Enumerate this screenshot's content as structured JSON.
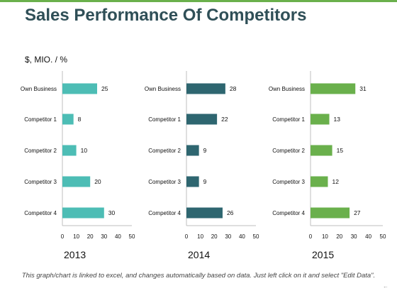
{
  "slide": {
    "title": "Sales Performance Of Competitors",
    "unit_label": "$, MIO. / %",
    "footnote": "This graph/chart is linked to excel, and changes automatically based on data. Just left click on it and select \"Edit Data\"."
  },
  "chart_data": [
    {
      "type": "bar",
      "orientation": "horizontal",
      "title": "2013",
      "categories": [
        "Own Business",
        "Competitor 1",
        "Competitor 2",
        "Competitor 3",
        "Competitor 4"
      ],
      "values": [
        25,
        8,
        10,
        20,
        30
      ],
      "xlim": [
        0,
        50
      ],
      "ticks": [
        0,
        10,
        20,
        30,
        40,
        50
      ],
      "color": "#4dbdb5",
      "data_labels": true,
      "grid": false
    },
    {
      "type": "bar",
      "orientation": "horizontal",
      "title": "2014",
      "categories": [
        "Own Business",
        "Competitor 1",
        "Competitor 2",
        "Competitor 3",
        "Competitor 4"
      ],
      "values": [
        28,
        22,
        9,
        9,
        26
      ],
      "xlim": [
        0,
        50
      ],
      "ticks": [
        0,
        10,
        20,
        30,
        40,
        50
      ],
      "color": "#2e6670",
      "data_labels": true,
      "grid": false
    },
    {
      "type": "bar",
      "orientation": "horizontal",
      "title": "2015",
      "categories": [
        "Own Business",
        "Competitor 1",
        "Competitor 2",
        "Competitor 3",
        "Competitor 4"
      ],
      "values": [
        31,
        13,
        15,
        12,
        27
      ],
      "xlim": [
        0,
        50
      ],
      "ticks": [
        0,
        10,
        20,
        30,
        40,
        50
      ],
      "color": "#6ab04c",
      "data_labels": true,
      "grid": false
    }
  ]
}
